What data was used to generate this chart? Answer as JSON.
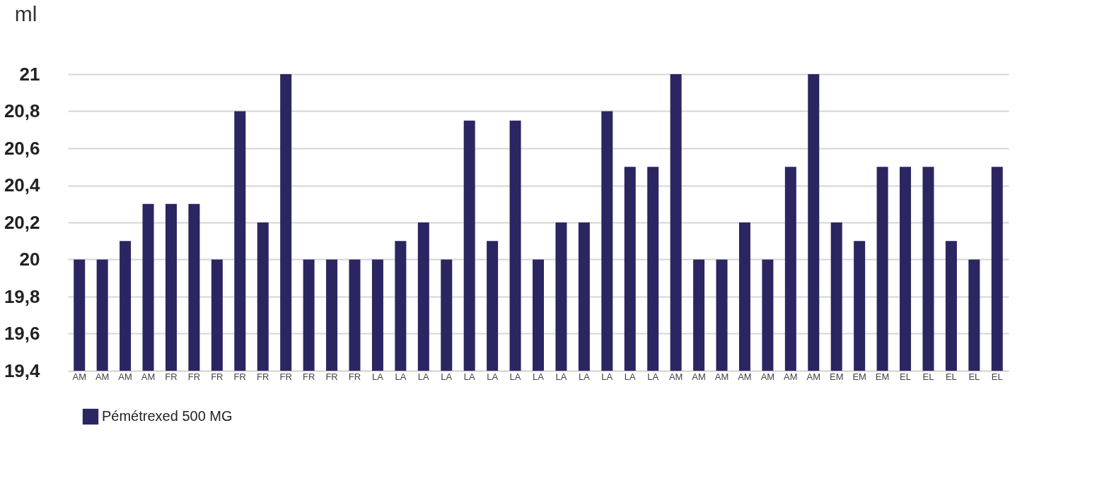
{
  "chart_data": {
    "type": "bar",
    "ylabel": "ml",
    "categories": [
      "AM",
      "AM",
      "AM",
      "AM",
      "FR",
      "FR",
      "FR",
      "FR",
      "FR",
      "FR",
      "FR",
      "FR",
      "FR",
      "LA",
      "LA",
      "LA",
      "LA",
      "LA",
      "LA",
      "LA",
      "LA",
      "LA",
      "LA",
      "LA",
      "LA",
      "LA",
      "AM",
      "AM",
      "AM",
      "AM",
      "AM",
      "AM",
      "AM",
      "EM",
      "EM",
      "EM",
      "EL",
      "EL",
      "EL",
      "EL",
      "EL"
    ],
    "series": [
      {
        "name": "Pémétrexed  500 MG",
        "color": "#2b2561",
        "values": [
          20,
          20,
          20.1,
          20.3,
          20.3,
          20.3,
          20,
          20.8,
          20.2,
          21,
          20,
          20,
          20,
          20,
          20.1,
          20.2,
          20,
          20.75,
          20.1,
          20.75,
          20,
          20.2,
          20.2,
          20.8,
          20.5,
          20.5,
          21,
          20,
          20,
          20.2,
          20,
          20.5,
          21,
          20.2,
          20.1,
          20.5,
          20.5,
          20.5,
          20.1,
          20,
          20.5
        ]
      }
    ],
    "ylim": [
      19.4,
      21
    ],
    "yticks": [
      {
        "value": 19.4,
        "label": "19,4"
      },
      {
        "value": 19.6,
        "label": "19,6"
      },
      {
        "value": 19.8,
        "label": "19,8"
      },
      20,
      {
        "value": 20.2,
        "label": "20,2"
      },
      {
        "value": 20.4,
        "label": "20,4"
      },
      {
        "value": 20.6,
        "label": "20,6"
      },
      {
        "value": 20.8,
        "label": "20,8"
      },
      21
    ],
    "grid": "y",
    "legend": "bottom"
  }
}
